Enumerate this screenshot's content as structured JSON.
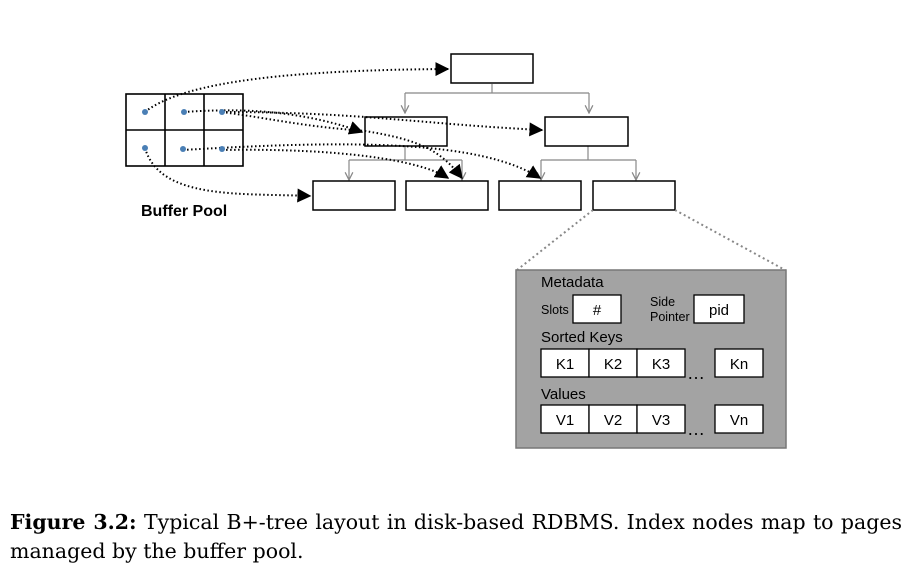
{
  "buffer_pool": {
    "label": "Buffer Pool"
  },
  "page_detail": {
    "metadata_label": "Metadata",
    "slots_label": "Slots",
    "slots_value": "#",
    "side_pointer_label_line1": "Side",
    "side_pointer_label_line2": "Pointer",
    "side_pointer_value": "pid",
    "sorted_keys_label": "Sorted Keys",
    "keys": [
      "K1",
      "K2",
      "K3"
    ],
    "last_key": "Kn",
    "values_label": "Values",
    "values": [
      "V1",
      "V2",
      "V3"
    ],
    "last_value": "Vn",
    "ellipsis": "…"
  },
  "caption": {
    "label": "Figure 3.2:",
    "text": "Typical B+-tree layout in disk-based RDBMS. Index nodes map to pages managed by the buffer pool."
  },
  "colors": {
    "detail_fill": "#a3a3a3",
    "pointer_dot": "#4a7fb5",
    "tree_line": "#888888"
  }
}
